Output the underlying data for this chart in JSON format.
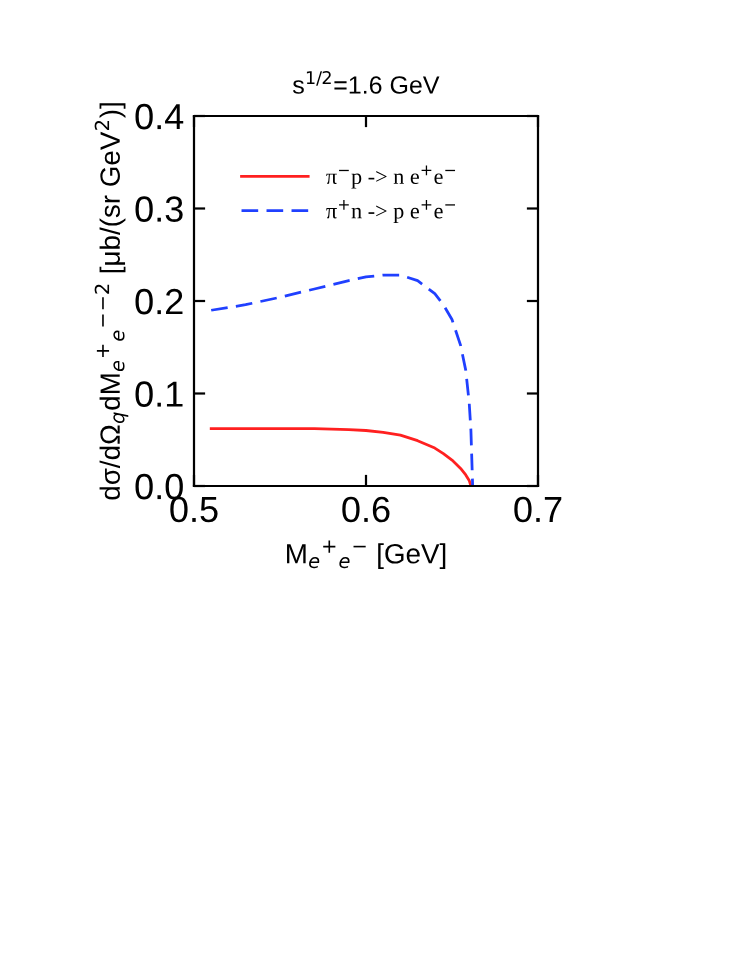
{
  "chart_data": {
    "type": "line",
    "title": "s$^{1/2}$=1.6 GeV",
    "xlabel": "M$_{e}$$^{+}$$_{e}$$^{−}$ [GeV]",
    "ylabel": "dσ/dΩ$_{q}$dM$_{e}$$^{+}$$_{e}$$^{−}$$^{−2}$ [μb/(sr GeV$^{2}$)]",
    "xlim": [
      0.5,
      0.7
    ],
    "xticks": [
      0.5,
      0.6,
      0.7
    ],
    "ylim": [
      0.0,
      0.4
    ],
    "yticks": [
      {
        "value": 0.0,
        "label": "0.0"
      },
      0.1,
      0.2,
      0.3,
      0.4
    ],
    "grid": false,
    "legend": "top left",
    "marker": "none",
    "series": [
      {
        "name": "π$^{−}$p -> n e$^{+}$e$^{−}$",
        "color": "#ff2020",
        "line_style": "solid",
        "x": [
          0.51,
          0.53,
          0.55,
          0.57,
          0.59,
          0.6,
          0.61,
          0.62,
          0.63,
          0.64,
          0.645,
          0.65,
          0.655,
          0.658,
          0.66,
          0.661
        ],
        "values": [
          0.062,
          0.062,
          0.062,
          0.062,
          0.061,
          0.06,
          0.058,
          0.055,
          0.049,
          0.041,
          0.035,
          0.028,
          0.019,
          0.012,
          0.006,
          0.0
        ]
      },
      {
        "name": "π$^{+}$n -> p e$^{+}$e$^{−}$",
        "color": "#2040ff",
        "line_style": "dashed",
        "x": [
          0.51,
          0.53,
          0.55,
          0.57,
          0.59,
          0.6,
          0.61,
          0.62,
          0.63,
          0.64,
          0.645,
          0.65,
          0.655,
          0.658,
          0.66,
          0.661,
          0.662
        ],
        "values": [
          0.19,
          0.196,
          0.204,
          0.213,
          0.222,
          0.226,
          0.228,
          0.228,
          0.222,
          0.208,
          0.196,
          0.18,
          0.152,
          0.125,
          0.09,
          0.06,
          0.0
        ]
      }
    ]
  }
}
